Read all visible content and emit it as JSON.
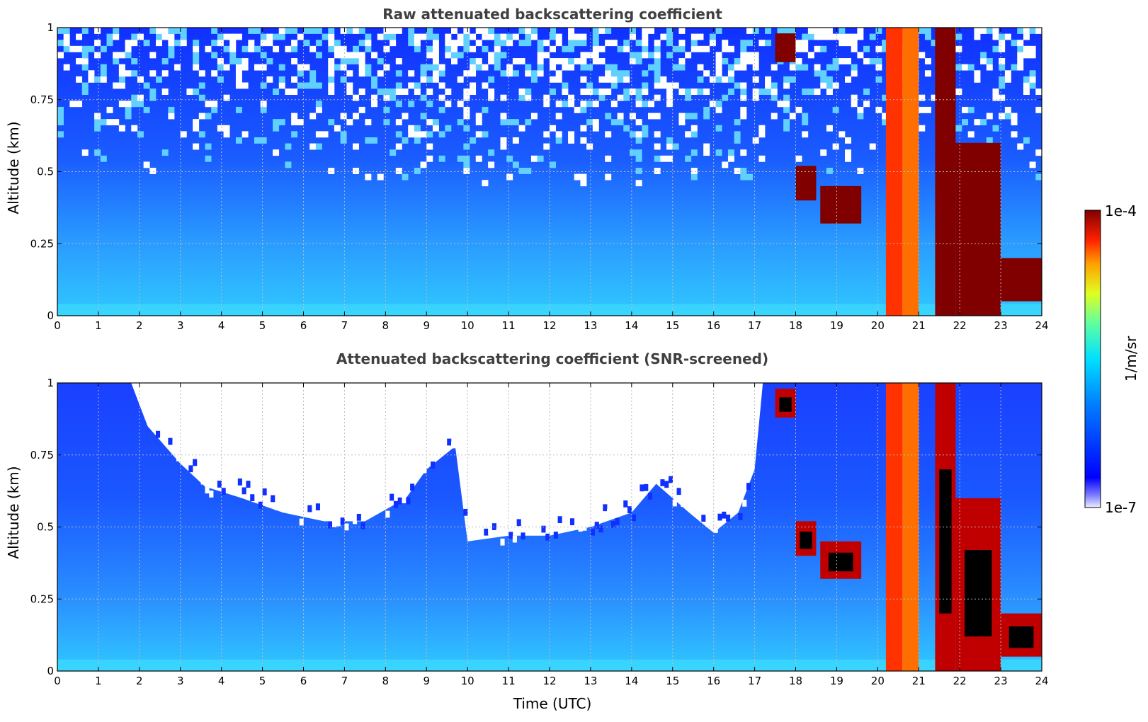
{
  "chart_data": [
    {
      "type": "heatmap",
      "title": "Raw attenuated backscattering coefficient",
      "xlabel": "",
      "ylabel": "Altitude (km)",
      "xlim": [
        0,
        24
      ],
      "ylim": [
        0,
        1
      ],
      "x_ticks": [
        "0",
        "1",
        "2",
        "3",
        "4",
        "5",
        "6",
        "7",
        "8",
        "9",
        "10",
        "11",
        "12",
        "13",
        "14",
        "15",
        "16",
        "17",
        "18",
        "19",
        "20",
        "21",
        "22",
        "23",
        "24"
      ],
      "y_ticks": [
        "0",
        "0.25",
        "0.5",
        "0.75",
        "1"
      ],
      "grid": true,
      "log_color_scale": true,
      "screened": false,
      "features": [
        {
          "x": [
            17.5,
            18.0
          ],
          "y": [
            0.88,
            0.98
          ],
          "value": 0.0001
        },
        {
          "x": [
            18.0,
            18.5
          ],
          "y": [
            0.4,
            0.52
          ],
          "value": 0.0001
        },
        {
          "x": [
            18.6,
            19.6
          ],
          "y": [
            0.32,
            0.45
          ],
          "value": 0.0001
        },
        {
          "x": [
            20.2,
            20.6
          ],
          "y": [
            0.0,
            1.0
          ],
          "value": 3e-05
        },
        {
          "x": [
            20.6,
            21.0
          ],
          "y": [
            0.0,
            1.0
          ],
          "value": 2e-05
        },
        {
          "x": [
            21.4,
            21.9
          ],
          "y": [
            0.0,
            1.0
          ],
          "value": 0.0001
        },
        {
          "x": [
            21.9,
            23.0
          ],
          "y": [
            0.0,
            0.6
          ],
          "value": 0.0001
        },
        {
          "x": [
            23.0,
            24.0
          ],
          "y": [
            0.05,
            0.2
          ],
          "value": 0.0001
        }
      ]
    },
    {
      "type": "heatmap",
      "title": "Attenuated backscattering coefficient (SNR-screened)",
      "xlabel": "Time (UTC)",
      "ylabel": "Altitude (km)",
      "xlim": [
        0,
        24
      ],
      "ylim": [
        0,
        1
      ],
      "x_ticks": [
        "0",
        "1",
        "2",
        "3",
        "4",
        "5",
        "6",
        "7",
        "8",
        "9",
        "10",
        "11",
        "12",
        "13",
        "14",
        "15",
        "16",
        "17",
        "18",
        "19",
        "20",
        "21",
        "22",
        "23",
        "24"
      ],
      "y_ticks": [
        "0",
        "0.25",
        "0.5",
        "0.75",
        "1"
      ],
      "grid": true,
      "log_color_scale": true,
      "screened": true,
      "screening_boundary_km": [
        [
          0.0,
          1.0
        ],
        [
          1.8,
          1.0
        ],
        [
          2.2,
          0.85
        ],
        [
          3.0,
          0.72
        ],
        [
          3.6,
          0.64
        ],
        [
          4.5,
          0.6
        ],
        [
          5.5,
          0.55
        ],
        [
          6.5,
          0.52
        ],
        [
          7.5,
          0.52
        ],
        [
          8.5,
          0.6
        ],
        [
          9.0,
          0.7
        ],
        [
          9.7,
          0.78
        ],
        [
          10.0,
          0.45
        ],
        [
          11.0,
          0.47
        ],
        [
          12.0,
          0.47
        ],
        [
          13.0,
          0.5
        ],
        [
          14.0,
          0.55
        ],
        [
          14.6,
          0.65
        ],
        [
          15.0,
          0.6
        ],
        [
          15.4,
          0.55
        ],
        [
          16.0,
          0.48
        ],
        [
          16.6,
          0.55
        ],
        [
          17.0,
          0.7
        ],
        [
          17.2,
          1.0
        ],
        [
          24.0,
          1.0
        ]
      ]
    }
  ],
  "colorbar": {
    "label": "1/m/sr",
    "max_label": "1e-4",
    "min_label": "1e-7",
    "range": [
      1e-07,
      0.0001
    ],
    "colormap": "jet",
    "low_color": "#eeeeff",
    "saturation_color": "#000000"
  }
}
